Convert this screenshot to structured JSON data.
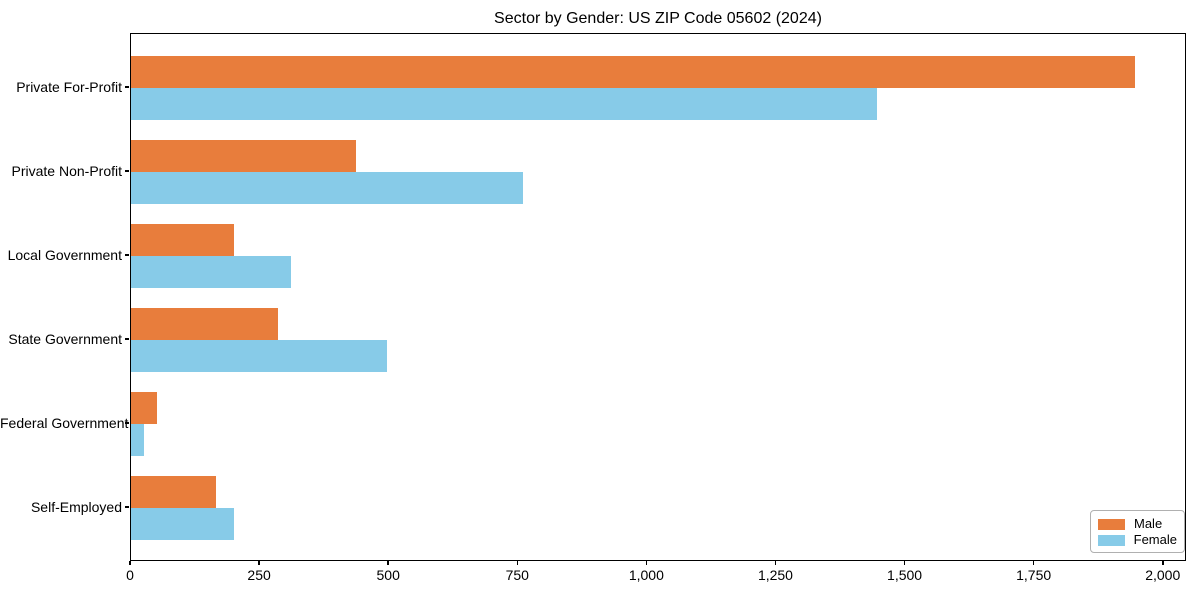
{
  "title": "Sector by Gender: US ZIP Code 05602 (2024)",
  "colors": {
    "male": "#e87d3c",
    "female": "#87cbe8",
    "axis": "#000000",
    "legend_border": "#b0b0b0",
    "background": "#ffffff"
  },
  "chart_data": {
    "type": "bar",
    "orientation": "horizontal",
    "title": "Sector by Gender: US ZIP Code 05602 (2024)",
    "categories": [
      "Private For-Profit",
      "Private Non-Profit",
      "Local Government",
      "State Government",
      "Federal Government",
      "Self-Employed"
    ],
    "series": [
      {
        "name": "Male",
        "color": "#e87d3c",
        "values": [
          1945,
          435,
          200,
          285,
          50,
          165
        ]
      },
      {
        "name": "Female",
        "color": "#87cbe8",
        "values": [
          1445,
          760,
          310,
          495,
          25,
          200
        ]
      }
    ],
    "xlabel": "",
    "ylabel": "",
    "xlim": [
      0,
      2045
    ],
    "x_ticks": [
      0,
      250,
      500,
      750,
      1000,
      1250,
      1500,
      1750,
      2000
    ],
    "x_tick_labels": [
      "0",
      "250",
      "500",
      "750",
      "1,000",
      "1,250",
      "1,500",
      "1,750",
      "2,000"
    ],
    "grid": false,
    "legend": {
      "position": "lower right",
      "entries": [
        "Male",
        "Female"
      ]
    }
  }
}
